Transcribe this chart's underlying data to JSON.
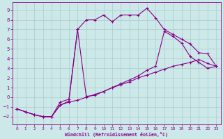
{
  "xlabel": "Windchill (Refroidissement éolien,°C)",
  "bg_color": "#cce8e8",
  "grid_color": "#aacccc",
  "line_color": "#880088",
  "xlim": [
    -0.5,
    23.5
  ],
  "ylim": [
    -2.8,
    9.8
  ],
  "xticks": [
    0,
    1,
    2,
    3,
    4,
    5,
    6,
    7,
    8,
    9,
    10,
    11,
    12,
    13,
    14,
    15,
    16,
    17,
    18,
    19,
    20,
    21,
    22,
    23
  ],
  "yticks": [
    -2,
    -1,
    0,
    1,
    2,
    3,
    4,
    5,
    6,
    7,
    8,
    9
  ],
  "s1x": [
    0,
    1,
    2,
    3,
    4,
    5,
    6,
    7,
    8,
    9,
    10,
    11,
    12,
    13,
    14,
    15,
    16,
    17,
    18,
    19,
    20,
    21,
    22,
    23
  ],
  "s1y": [
    -1.2,
    -1.5,
    -1.8,
    -2.0,
    -2.0,
    -0.8,
    -0.5,
    -0.3,
    0.0,
    0.3,
    0.6,
    1.0,
    1.3,
    1.6,
    2.0,
    2.3,
    2.6,
    2.9,
    3.2,
    3.4,
    3.6,
    3.9,
    3.5,
    3.2
  ],
  "s2x": [
    0,
    1,
    2,
    3,
    4,
    5,
    6,
    7,
    8,
    9,
    10,
    11,
    12,
    13,
    14,
    15,
    16,
    17,
    18,
    19,
    20,
    21,
    22,
    23
  ],
  "s2y": [
    -1.2,
    -1.5,
    -1.8,
    -2.0,
    -2.0,
    -0.8,
    -0.4,
    7.0,
    8.0,
    8.0,
    8.5,
    7.8,
    8.5,
    8.5,
    8.5,
    9.2,
    8.2,
    7.0,
    6.5,
    6.0,
    5.5,
    4.6,
    4.5,
    3.2
  ],
  "s3x": [
    0,
    1,
    2,
    3,
    4,
    5,
    6,
    7,
    8,
    9,
    10,
    11,
    12,
    13,
    14,
    15,
    16,
    17,
    18,
    19,
    20,
    21,
    22,
    23
  ],
  "s3y": [
    -1.2,
    -1.5,
    -1.8,
    -2.0,
    -2.0,
    -0.5,
    -0.2,
    7.0,
    0.1,
    0.2,
    0.6,
    1.0,
    1.4,
    1.8,
    2.2,
    2.8,
    3.2,
    6.8,
    6.3,
    5.6,
    4.2,
    3.6,
    3.0,
    3.2
  ]
}
